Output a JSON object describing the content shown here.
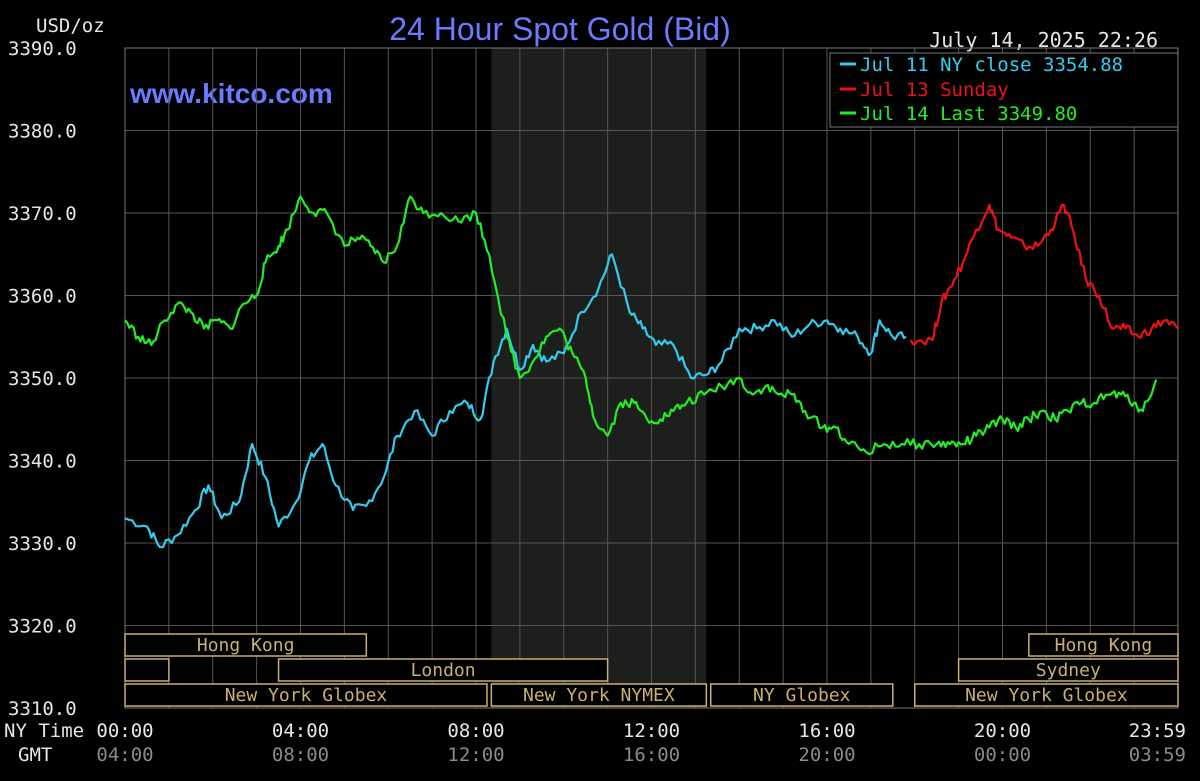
{
  "header": {
    "unit": "USD/oz",
    "title": "24 Hour Spot Gold (Bid)",
    "datetime": "July 14, 2025 22:26",
    "site": "www.kitco.com"
  },
  "legend": [
    {
      "label": "Jul 11 NY close 3354.88",
      "color": "#33ccee"
    },
    {
      "label": "Jul 13 Sunday",
      "color": "#ee1111"
    },
    {
      "label": "Jul 14 Last 3349.80",
      "color": "#22ee22"
    }
  ],
  "axis_labels": {
    "ny_time": "NY Time",
    "gmt": "GMT"
  },
  "sessions": [
    {
      "label": "Hong Kong",
      "start": 0,
      "end": 5.5,
      "row": 0
    },
    {
      "label": "",
      "start": 0,
      "end": 1.0,
      "row": 1
    },
    {
      "label": "London",
      "start": 3.5,
      "end": 11.0,
      "row": 1
    },
    {
      "label": "New York Globex",
      "start": 0,
      "end": 8.25,
      "row": 2
    },
    {
      "label": "New York NYMEX",
      "start": 8.35,
      "end": 13.25,
      "row": 2
    },
    {
      "label": "NY Globex",
      "start": 13.35,
      "end": 17.5,
      "row": 2
    },
    {
      "label": "Hong Kong",
      "start": 20.6,
      "end": 24.0,
      "row": 0
    },
    {
      "label": "Sydney",
      "start": 19.0,
      "end": 24.0,
      "row": 1
    },
    {
      "label": "New York Globex",
      "start": 18.0,
      "end": 24.0,
      "row": 2
    }
  ],
  "chart_data": {
    "type": "line",
    "title": "24 Hour Spot Gold (Bid)",
    "ylabel": "USD/oz",
    "ylim": [
      3310,
      3390
    ],
    "y_ticks": [
      "3310.0",
      "3320.0",
      "3330.0",
      "3340.0",
      "3350.0",
      "3360.0",
      "3370.0",
      "3380.0",
      "3390.0"
    ],
    "x_ticks_ny": [
      "00:00",
      "04:00",
      "08:00",
      "12:00",
      "16:00",
      "20:00",
      "23:59"
    ],
    "x_ticks_gmt": [
      "04:00",
      "08:00",
      "12:00",
      "16:00",
      "20:00",
      "00:00",
      "03:59"
    ],
    "x_unit": "NY time (hours)",
    "xlim": [
      0,
      24
    ],
    "nymex_shade": [
      8.35,
      13.25
    ],
    "grid": true,
    "legend_position": "top-right",
    "series": [
      {
        "name": "Jul 11 NY close 3354.88",
        "color": "#33ccee",
        "x": [
          0,
          0.5,
          0.8,
          1.2,
          1.6,
          1.9,
          2.2,
          2.6,
          2.9,
          3.2,
          3.5,
          3.9,
          4.2,
          4.5,
          4.8,
          5.2,
          5.5,
          5.9,
          6.2,
          6.6,
          7.0,
          7.4,
          7.8,
          8.1,
          8.4,
          8.7,
          9.0,
          9.3,
          9.6,
          10.0,
          10.4,
          10.8,
          11.1,
          11.5,
          11.8,
          12.1,
          12.5,
          12.9,
          13.3,
          13.6,
          14.0,
          14.4,
          14.8,
          15.2,
          15.6,
          16.0,
          16.3,
          16.7,
          17.0,
          17.2,
          17.5,
          17.8
        ],
        "y": [
          3333,
          3332,
          3329.5,
          3331,
          3334,
          3337,
          3333,
          3335,
          3342,
          3338,
          3332,
          3335,
          3340,
          3342,
          3337,
          3334,
          3334.5,
          3338,
          3343,
          3346,
          3343,
          3346,
          3347,
          3345,
          3352,
          3356,
          3351,
          3354,
          3352,
          3353,
          3358,
          3361,
          3365,
          3358,
          3356,
          3354,
          3354,
          3350,
          3350.5,
          3352,
          3356,
          3356,
          3357,
          3355,
          3356.5,
          3357,
          3356,
          3355,
          3353,
          3357,
          3355,
          3355
        ]
      },
      {
        "name": "Jul 13 Sunday",
        "color": "#ee1111",
        "x": [
          17.9,
          18.4,
          18.6,
          18.8,
          19.1,
          19.4,
          19.7,
          19.9,
          20.2,
          20.5,
          20.8,
          21.1,
          21.4,
          21.6,
          21.9,
          22.2,
          22.5,
          22.8,
          23.1,
          23.4,
          23.7,
          24.0
        ],
        "y": [
          3354.6,
          3354.6,
          3359,
          3361,
          3364,
          3368,
          3371,
          3368,
          3367,
          3366,
          3366,
          3368,
          3371,
          3368,
          3362,
          3360,
          3356,
          3356,
          3355,
          3356,
          3357,
          3356
        ]
      },
      {
        "name": "Jul 14 Last 3349.80",
        "color": "#22ee22",
        "x": [
          0,
          0.3,
          0.6,
          0.9,
          1.2,
          1.5,
          1.8,
          2.1,
          2.4,
          2.7,
          3.0,
          3.2,
          3.5,
          3.7,
          4.0,
          4.3,
          4.6,
          5.0,
          5.3,
          5.6,
          5.9,
          6.2,
          6.5,
          6.8,
          7.2,
          7.6,
          8.0,
          8.3,
          8.7,
          9.0,
          9.3,
          9.6,
          9.9,
          10.2,
          10.5,
          10.7,
          11.0,
          11.3,
          11.6,
          11.9,
          12.2,
          12.5,
          12.8,
          13.2,
          13.6,
          14.0,
          14.3,
          14.6,
          14.9,
          15.2,
          15.5,
          15.9,
          16.2,
          16.5,
          16.9,
          17.3,
          17.7,
          18.1,
          18.5,
          18.8,
          19.1,
          19.4,
          19.7,
          20.0,
          20.3,
          20.6,
          20.9,
          21.2,
          21.5,
          21.8,
          22.1,
          22.4,
          22.7,
          23.0,
          23.2,
          23.5
        ],
        "y": [
          3357,
          3355,
          3354,
          3357,
          3359,
          3358,
          3356,
          3357,
          3356,
          3359,
          3360,
          3364,
          3366,
          3368,
          3372,
          3370,
          3370,
          3366,
          3367,
          3366,
          3364,
          3366,
          3372,
          3370,
          3370,
          3369,
          3370,
          3365,
          3355,
          3350,
          3352,
          3355,
          3356,
          3353,
          3350,
          3345,
          3343,
          3347,
          3347,
          3345,
          3345,
          3346,
          3347,
          3348,
          3349,
          3350,
          3348,
          3349,
          3348,
          3348,
          3346,
          3344,
          3344,
          3342,
          3341,
          3342,
          3342,
          3342,
          3342,
          3342,
          3342,
          3343,
          3344,
          3345,
          3344,
          3345,
          3346,
          3345,
          3346,
          3347,
          3347,
          3348,
          3348,
          3347,
          3346,
          3349.8
        ]
      }
    ]
  }
}
